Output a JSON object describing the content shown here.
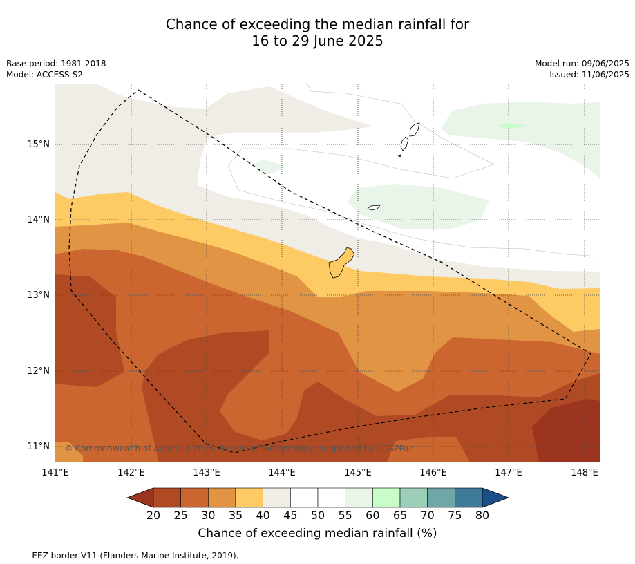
{
  "title_line1": "Chance of exceeding the median rainfall for",
  "title_line2": "16 to 29 June 2025",
  "base_period": "Base period: 1981-2018",
  "model": "Model: ACCESS-S2",
  "model_run": "Model run: 09/06/2025",
  "issued": "Issued: 11/06/2025",
  "copyright": "© Commonwealth of Australia 2025, Bureau of Meteorology, supported by COSPPac",
  "lat_labels": [
    "15°N",
    "14°N",
    "13°N",
    "12°N",
    "11°N"
  ],
  "lon_labels": [
    "141°E",
    "142°E",
    "143°E",
    "144°E",
    "145°E",
    "146°E",
    "147°E",
    "148°E"
  ],
  "colorbar": {
    "title": "Chance of exceeding median rainfall (%)",
    "ticks": [
      "20",
      "25",
      "30",
      "35",
      "40",
      "45",
      "50",
      "55",
      "60",
      "65",
      "70",
      "75",
      "80"
    ],
    "colors": [
      "#b04a24",
      "#cc6630",
      "#e09444",
      "#fdca64",
      "#f0ece6",
      "#ffffff",
      "#ffffff",
      "#e9f5e9",
      "#c8fcc8",
      "#9ccfb7",
      "#6fa7a7",
      "#3f7b99"
    ],
    "under_color": "#9c3520",
    "over_color": "#1c4e88"
  },
  "footnote": "--  --  -- EEZ border V11 (Flanders Marine Institute, 2019).",
  "map_colors": {
    "c20": "#9c3520",
    "c25": "#b04a24",
    "c30": "#cc6630",
    "c35": "#e09444",
    "c40": "#fdca64",
    "c45": "#f0ece6",
    "c55": "#e9f5e9",
    "c60": "#c8fcc8"
  }
}
